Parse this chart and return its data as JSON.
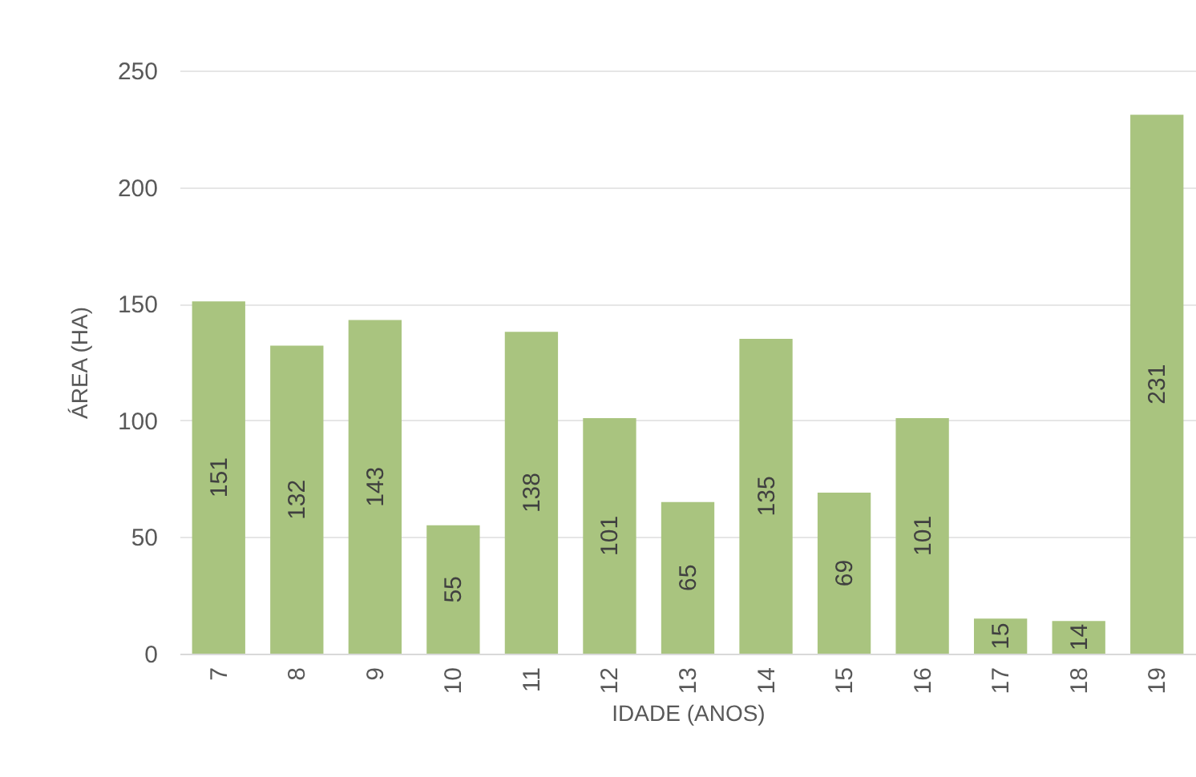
{
  "chart_data": {
    "type": "bar",
    "xlabel": "IDADE (ANOS)",
    "ylabel": "ÁREA (HA)",
    "categories": [
      "7",
      "8",
      "9",
      "10",
      "11",
      "12",
      "13",
      "14",
      "15",
      "16",
      "17",
      "18",
      "19"
    ],
    "values": [
      151,
      132,
      143,
      55,
      138,
      101,
      65,
      135,
      69,
      101,
      15,
      14,
      231
    ],
    "color": "#a9c47f",
    "ylim": [
      0,
      250
    ],
    "yticks": [
      0,
      50,
      100,
      150,
      200,
      250
    ],
    "grid": "y",
    "data_labels": true
  }
}
